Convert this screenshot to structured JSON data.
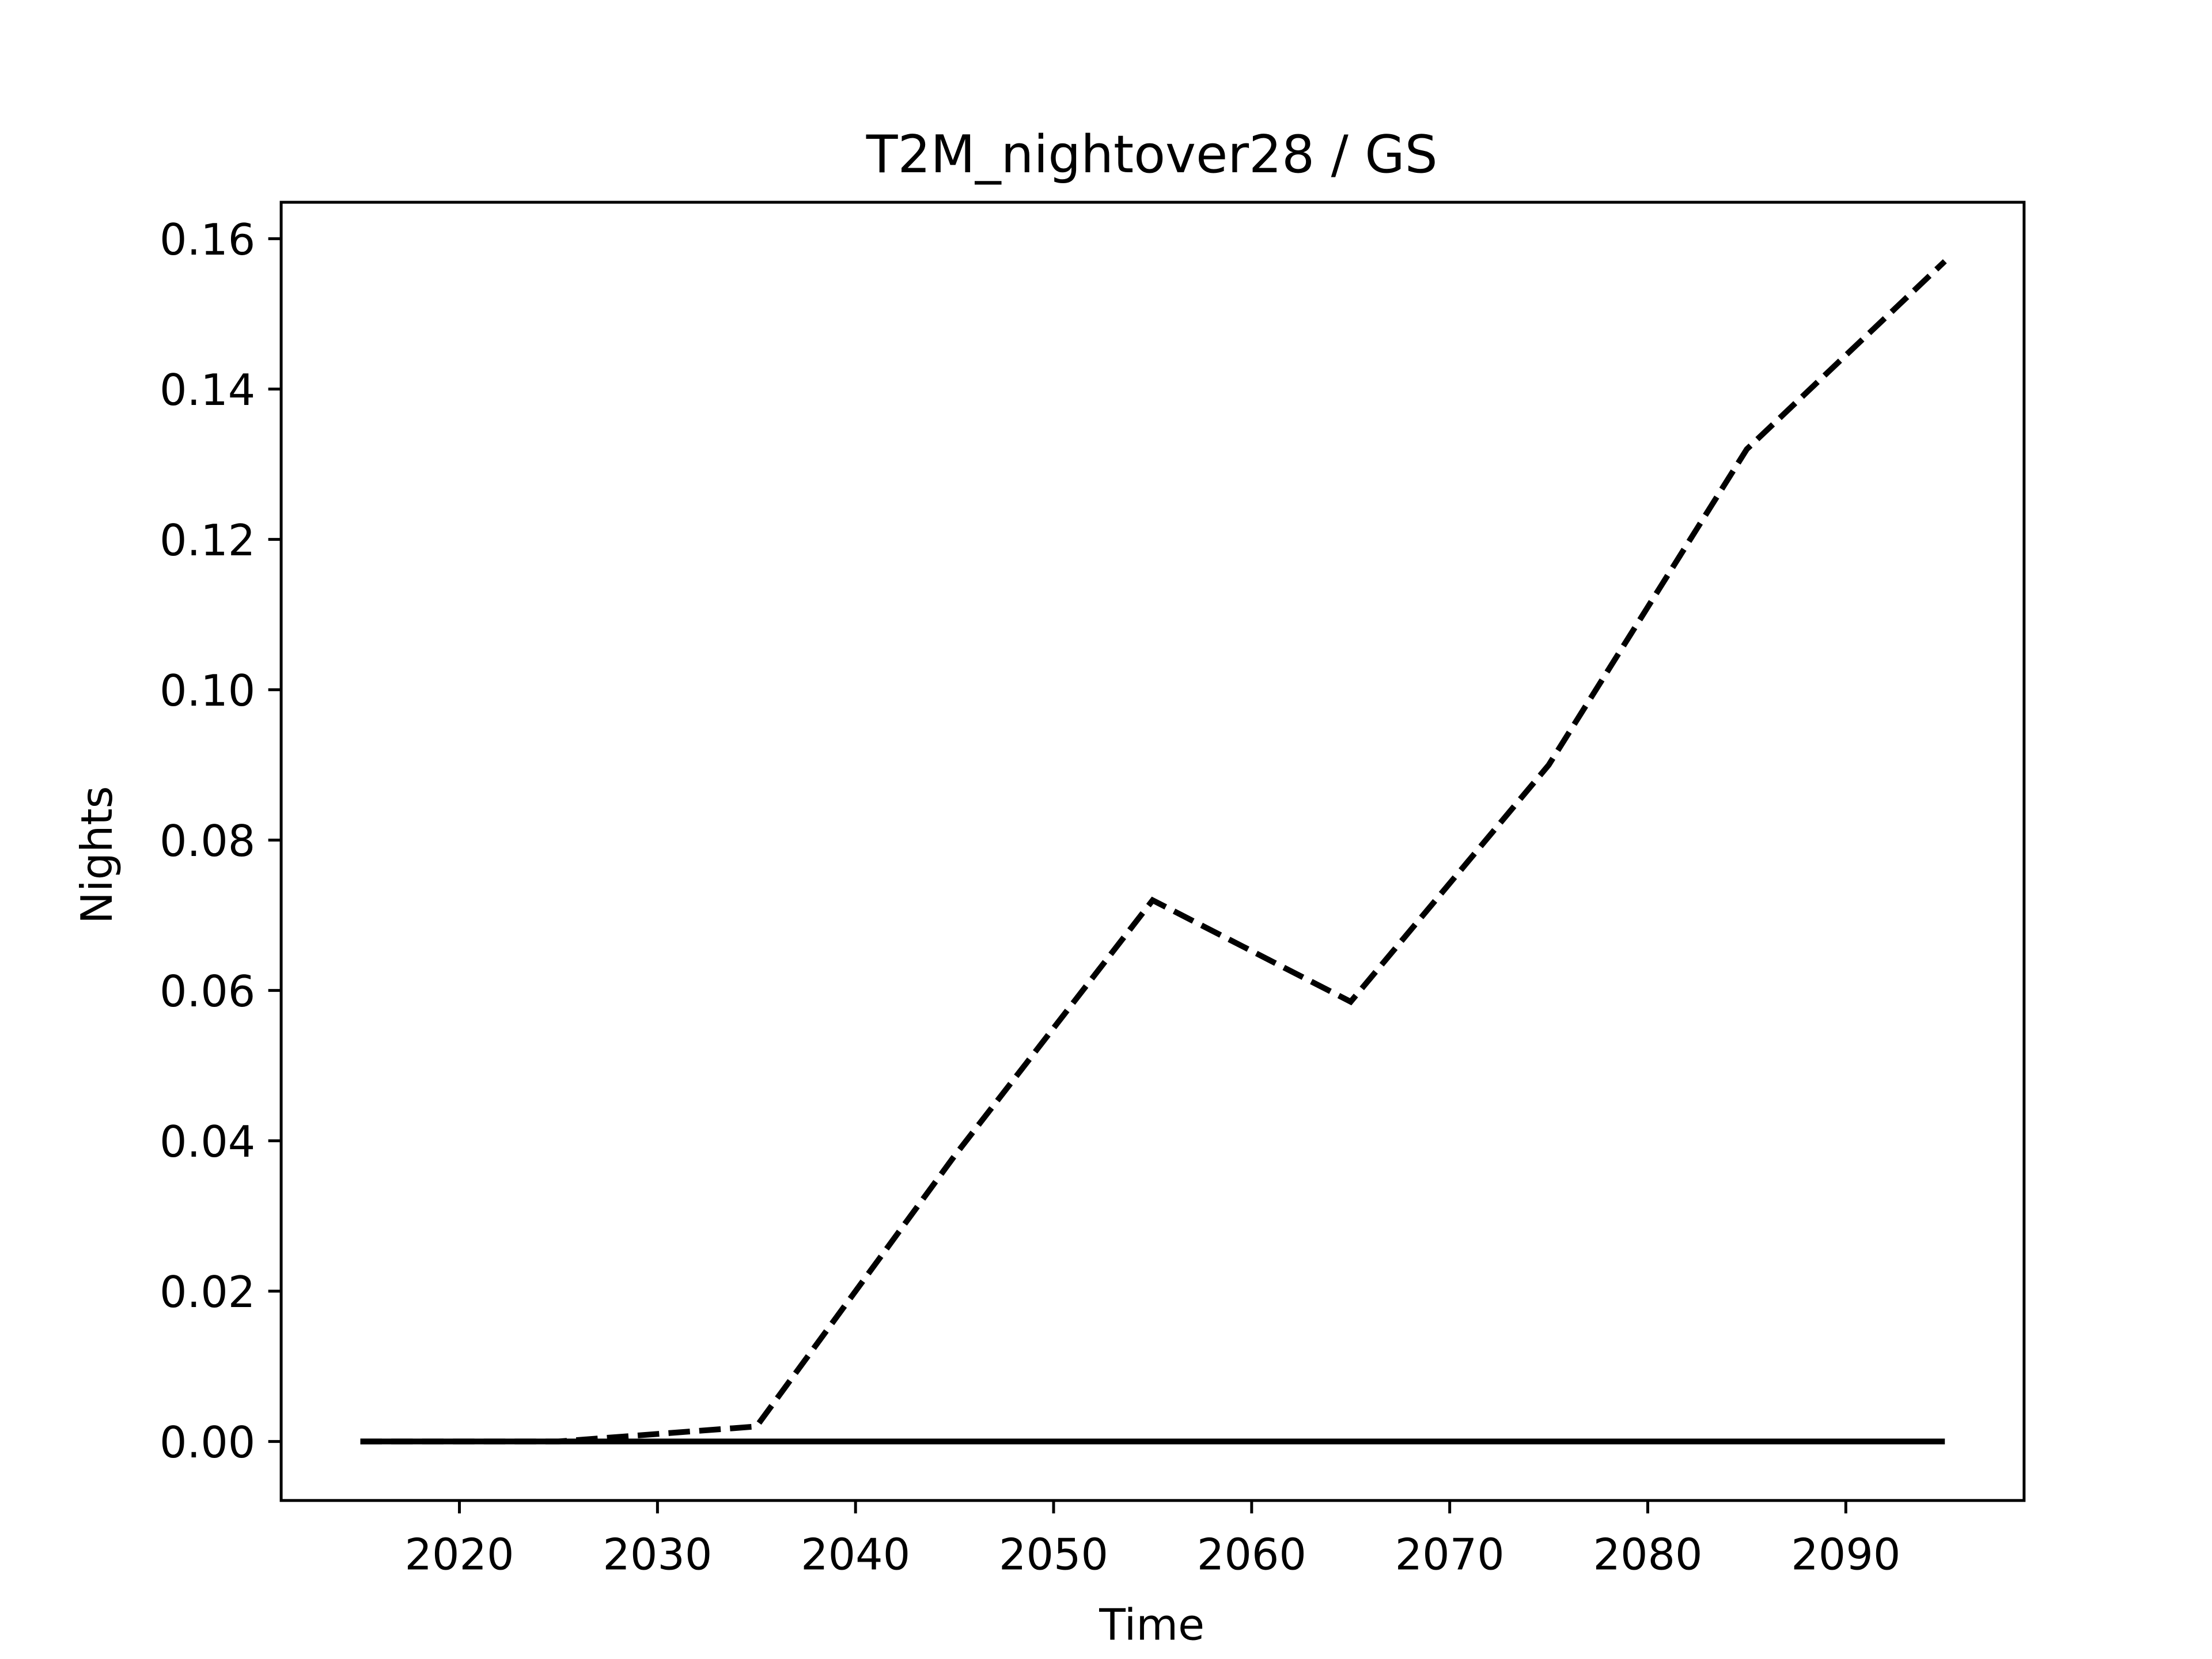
{
  "chart_data": {
    "type": "line",
    "title": "T2M_nightover28 / GS",
    "x_label": "Time",
    "y_label": "Nights",
    "x": [
      2015,
      2025,
      2035,
      2045,
      2055,
      2065,
      2075,
      2085,
      2095
    ],
    "series": [
      {
        "color": "#000000",
        "dash": "dashed",
        "values": [
          0,
          0,
          0.002,
          0.038,
          0.072,
          0.0585,
          0.09,
          0.132,
          0.157
        ]
      },
      {
        "color": "#000000",
        "dash": "solid",
        "values": [
          0,
          0,
          0,
          0,
          0,
          0,
          0,
          0,
          0
        ]
      }
    ],
    "xlim": [
      2011,
      2099
    ],
    "xticks": [
      2020,
      2030,
      2040,
      2050,
      2060,
      2070,
      2080,
      2090
    ],
    "ylim": [
      -0.00785,
      0.16485
    ],
    "yticks": [
      {
        "value": 0,
        "label": "0.00"
      },
      {
        "value": 0.02,
        "label": "0.02"
      },
      {
        "value": 0.04,
        "label": "0.04"
      },
      {
        "value": 0.06,
        "label": "0.06"
      },
      {
        "value": 0.08,
        "label": "0.08"
      },
      {
        "value": 0.1,
        "label": "0.10"
      },
      {
        "value": 0.12,
        "label": "0.12"
      },
      {
        "value": 0.14,
        "label": "0.14"
      },
      {
        "value": 0.16,
        "label": "0.16"
      }
    ],
    "grid": false
  }
}
